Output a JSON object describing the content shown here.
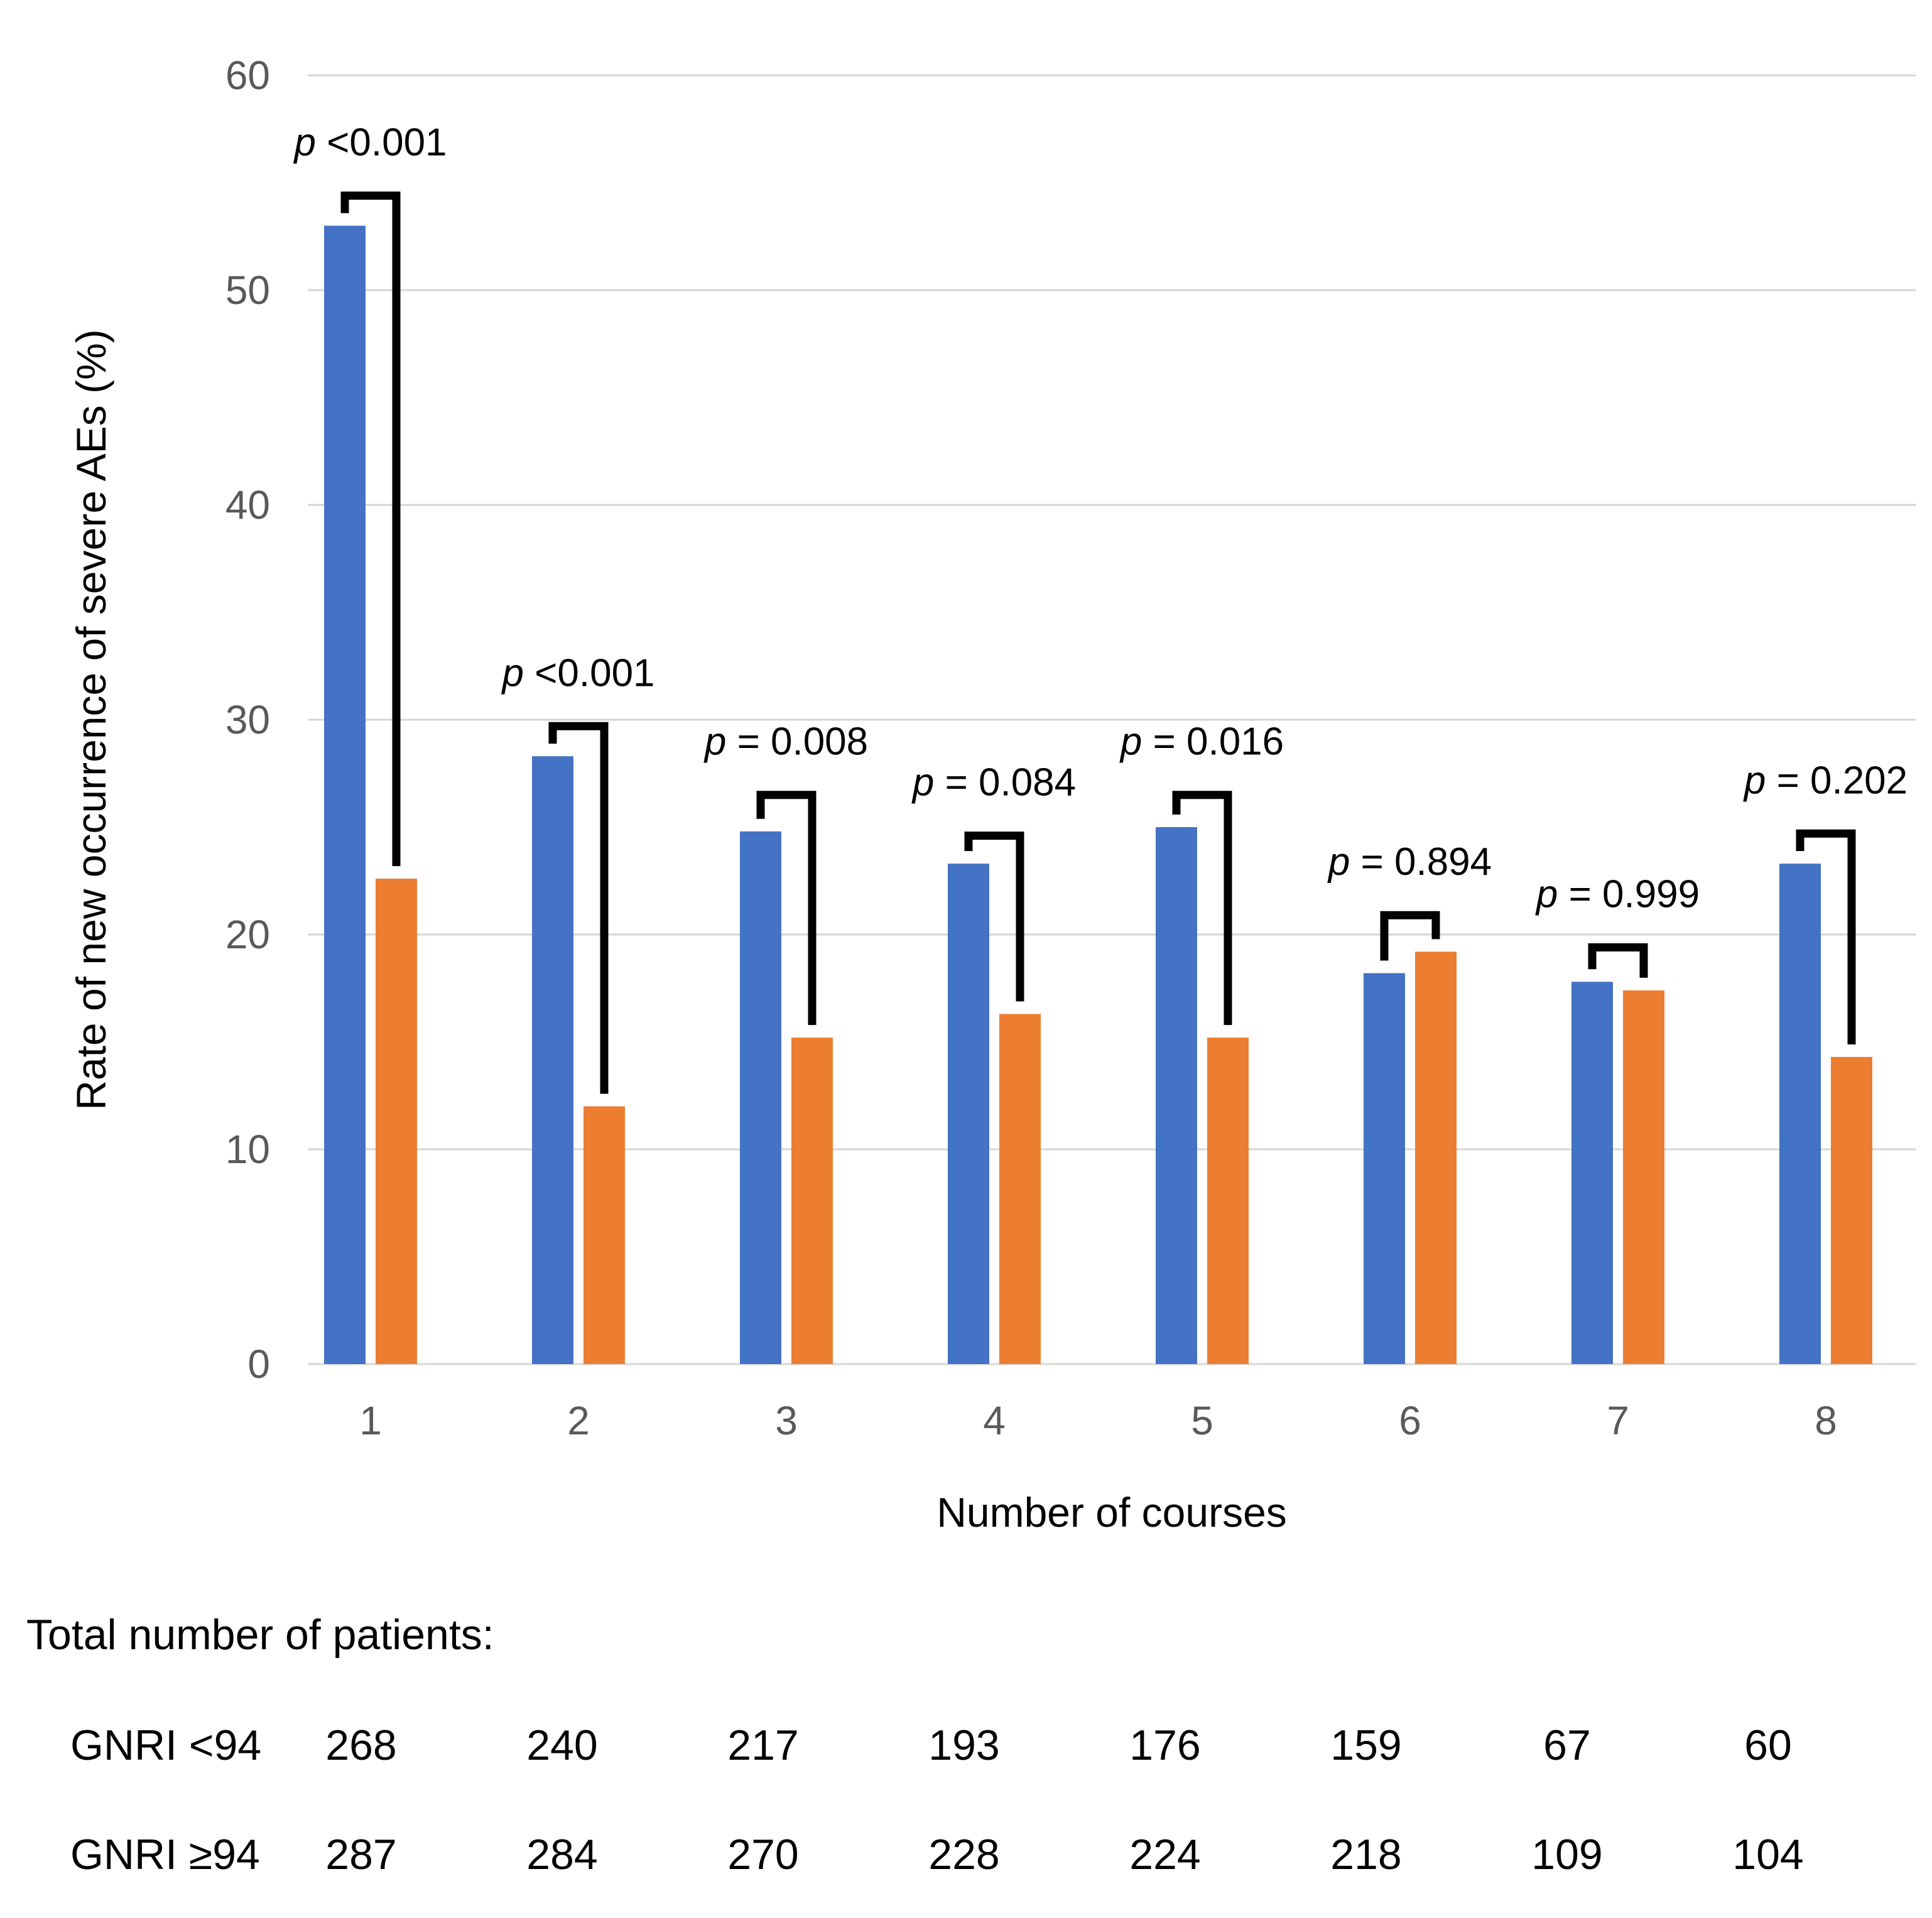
{
  "chart_data": {
    "type": "bar",
    "title": "",
    "xlabel": "Number of courses",
    "ylabel": "Rate of new occurrence of severe AEs (%)",
    "categories": [
      "1",
      "2",
      "3",
      "4",
      "5",
      "6",
      "7",
      "8"
    ],
    "ylim": [
      0,
      60
    ],
    "yticks": [
      0,
      10,
      20,
      30,
      40,
      50,
      60
    ],
    "grid": true,
    "legend_position": "none",
    "series": [
      {
        "name": "GNRI <94",
        "color": "#4472C4",
        "values": [
          53.0,
          28.3,
          24.8,
          23.3,
          25.0,
          18.2,
          17.8,
          23.3
        ]
      },
      {
        "name": "GNRI ≥94",
        "color": "#ED7D31",
        "values": [
          22.6,
          12.0,
          15.2,
          16.3,
          15.2,
          19.2,
          17.4,
          14.3
        ]
      }
    ],
    "annotations": [
      {
        "category": "1",
        "p_label": "p <0.001",
        "bracket_top": 54.4
      },
      {
        "category": "2",
        "p_label": "p <0.001",
        "bracket_top": 29.7
      },
      {
        "category": "3",
        "p_label": "p = 0.008",
        "bracket_top": 26.5
      },
      {
        "category": "4",
        "p_label": "p = 0.084",
        "bracket_top": 24.6
      },
      {
        "category": "5",
        "p_label": "p = 0.016",
        "bracket_top": 26.5
      },
      {
        "category": "6",
        "p_label": "p = 0.894",
        "bracket_top": 20.9
      },
      {
        "category": "7",
        "p_label": "p = 0.999",
        "bracket_top": 19.4
      },
      {
        "category": "8",
        "p_label": "p = 0.202",
        "bracket_top": 24.7
      }
    ]
  },
  "patients_table": {
    "title": "Total number of patients:",
    "rows": [
      {
        "label": "GNRI <94",
        "values": [
          "268",
          "240",
          "217",
          "193",
          "176",
          "159",
          "67",
          "60"
        ]
      },
      {
        "label": "GNRI ≥94",
        "values": [
          "287",
          "284",
          "270",
          "228",
          "224",
          "218",
          "109",
          "104"
        ]
      }
    ]
  },
  "colors": {
    "bar_blue": "#4472C4",
    "bar_orange": "#ED7D31",
    "gridline": "#D6D6D6",
    "tick_label": "#595959",
    "text": "#000000",
    "bracket": "#000000",
    "background": "#FFFFFF"
  }
}
